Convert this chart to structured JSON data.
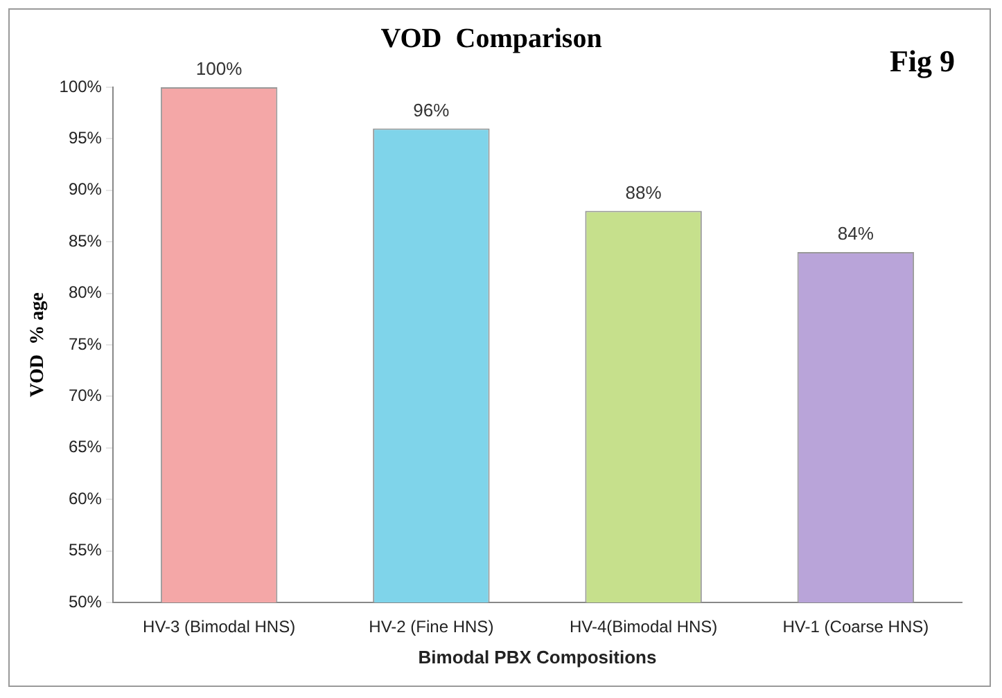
{
  "chart_data": {
    "type": "bar",
    "title": "VOD  Comparison",
    "xlabel": "Bimodal PBX Compositions",
    "ylabel": "VOD  % age",
    "categories": [
      "HV-3 (Bimodal HNS)",
      "HV-2 (Fine HNS)",
      "HV-4(Bimodal HNS)",
      "HV-1 (Coarse HNS)"
    ],
    "values": [
      100,
      96,
      88,
      84
    ],
    "colors": [
      "#f4a7a7",
      "#7fd4ea",
      "#c6e08c",
      "#b9a4d9"
    ],
    "value_labels": [
      "100%",
      "96%",
      "88%",
      "84%"
    ],
    "ylim": [
      50,
      100
    ],
    "yticks": [
      {
        "value": 50,
        "label": "50%"
      },
      {
        "value": 55,
        "label": "55%"
      },
      {
        "value": 60,
        "label": "60%"
      },
      {
        "value": 65,
        "label": "65%"
      },
      {
        "value": 70,
        "label": "70%"
      },
      {
        "value": 75,
        "label": "75%"
      },
      {
        "value": 80,
        "label": "80%"
      },
      {
        "value": 85,
        "label": "85%"
      },
      {
        "value": 90,
        "label": "90%"
      },
      {
        "value": 95,
        "label": "95%"
      },
      {
        "value": 100,
        "label": "100%"
      }
    ],
    "grid": false,
    "legend": false,
    "annotations": [
      "Fig 9"
    ]
  }
}
